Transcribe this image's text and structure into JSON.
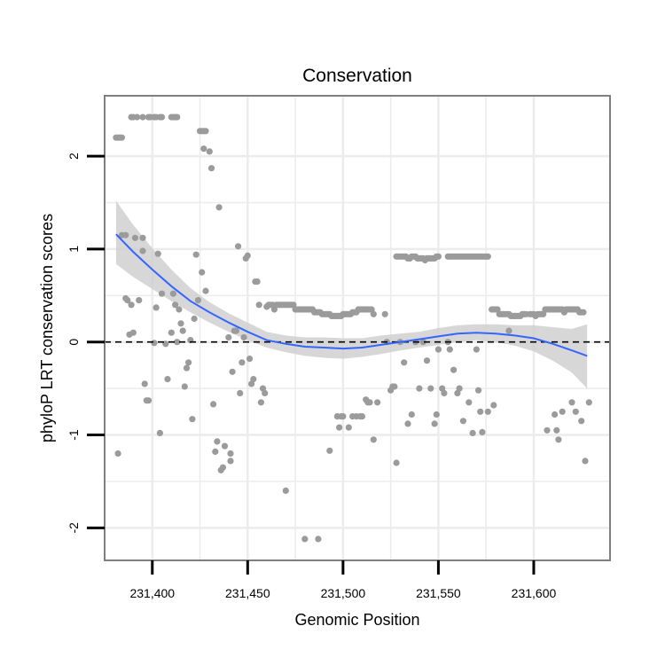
{
  "chart_data": {
    "type": "scatter",
    "title": "Conservation",
    "xlabel": "Genomic Position",
    "ylabel": "phyloP LRT conservation scores",
    "xlim": [
      231375,
      231640
    ],
    "ylim": [
      -2.35,
      2.65
    ],
    "x_ticks": [
      231400,
      231450,
      231500,
      231550,
      231600
    ],
    "x_tick_labels": [
      "231,400",
      "231,450",
      "231,500",
      "231,550",
      "231,600"
    ],
    "y_ticks": [
      -2,
      -1,
      0,
      1,
      2
    ],
    "y_tick_labels": [
      "-2",
      "-1",
      "0",
      "1",
      "2"
    ],
    "reference_line": 0,
    "points": [
      [
        231381,
        2.2
      ],
      [
        231382,
        2.2
      ],
      [
        231383,
        2.2
      ],
      [
        231384,
        2.2
      ],
      [
        231382,
        -1.2
      ],
      [
        231384,
        1.15
      ],
      [
        231386,
        1.15
      ],
      [
        231386,
        0.47
      ],
      [
        231387,
        0.45
      ],
      [
        231388,
        0.08
      ],
      [
        231389,
        0.4
      ],
      [
        231390,
        0.1
      ],
      [
        231391,
        1.12
      ],
      [
        231393,
        0.45
      ],
      [
        231395,
        1.12
      ],
      [
        231389,
        2.42
      ],
      [
        231390,
        2.42
      ],
      [
        231392,
        2.42
      ],
      [
        231395,
        2.42
      ],
      [
        231398,
        2.42
      ],
      [
        231399,
        2.42
      ],
      [
        231401,
        2.42
      ],
      [
        231402,
        2.42
      ],
      [
        231404,
        2.42
      ],
      [
        231405,
        2.42
      ],
      [
        231410,
        2.42
      ],
      [
        231411,
        2.42
      ],
      [
        231412,
        2.42
      ],
      [
        231413,
        2.42
      ],
      [
        231395,
        0.98
      ],
      [
        231396,
        -0.45
      ],
      [
        231397,
        -0.63
      ],
      [
        231398,
        -0.63
      ],
      [
        231401,
        -0.01
      ],
      [
        231402,
        0.37
      ],
      [
        231403,
        0.95
      ],
      [
        231404,
        -0.98
      ],
      [
        231405,
        0.52
      ],
      [
        231407,
        -0.02
      ],
      [
        231408,
        -0.4
      ],
      [
        231410,
        0.1
      ],
      [
        231411,
        0.52
      ],
      [
        231412,
        0.4
      ],
      [
        231413,
        0.0
      ],
      [
        231414,
        0.35
      ],
      [
        231415,
        0.2
      ],
      [
        231416,
        0.12
      ],
      [
        231417,
        -0.48
      ],
      [
        231418,
        -0.28
      ],
      [
        231419,
        -0.22
      ],
      [
        231420,
        0.02
      ],
      [
        231421,
        -0.83
      ],
      [
        231422,
        0.25
      ],
      [
        231423,
        0.94
      ],
      [
        231424,
        0.45
      ],
      [
        231425,
        2.27
      ],
      [
        231426,
        2.27
      ],
      [
        231427,
        2.27
      ],
      [
        231428,
        2.27
      ],
      [
        231426,
        0.75
      ],
      [
        231427,
        2.08
      ],
      [
        231428,
        0.55
      ],
      [
        231430,
        2.05
      ],
      [
        231431,
        1.87
      ],
      [
        231432,
        -0.67
      ],
      [
        231433,
        -1.18
      ],
      [
        231434,
        -1.07
      ],
      [
        231435,
        1.45
      ],
      [
        231436,
        -1.38
      ],
      [
        231437,
        -1.35
      ],
      [
        231438,
        -1.12
      ],
      [
        231440,
        0.05
      ],
      [
        231441,
        -1.28
      ],
      [
        231441,
        -1.2
      ],
      [
        231442,
        -0.32
      ],
      [
        231443,
        0.12
      ],
      [
        231444,
        0.12
      ],
      [
        231445,
        1.03
      ],
      [
        231446,
        -0.55
      ],
      [
        231447,
        -0.22
      ],
      [
        231448,
        0.05
      ],
      [
        231449,
        0.9
      ],
      [
        231450,
        0.93
      ],
      [
        231451,
        -0.18
      ],
      [
        231452,
        -0.45
      ],
      [
        231453,
        -0.4
      ],
      [
        231454,
        0.65
      ],
      [
        231455,
        0.65
      ],
      [
        231456,
        0.4
      ],
      [
        231457,
        -0.65
      ],
      [
        231458,
        -0.5
      ],
      [
        231459,
        -0.55
      ],
      [
        231460,
        0.38
      ],
      [
        231461,
        0.4
      ],
      [
        231462,
        0.4
      ],
      [
        231463,
        0.4
      ],
      [
        231464,
        0.35
      ],
      [
        231465,
        0.4
      ],
      [
        231466,
        0.4
      ],
      [
        231467,
        0.4
      ],
      [
        231468,
        0.4
      ],
      [
        231469,
        0.4
      ],
      [
        231470,
        0.4
      ],
      [
        231471,
        0.4
      ],
      [
        231472,
        0.4
      ],
      [
        231473,
        0.4
      ],
      [
        231474,
        0.4
      ],
      [
        231475,
        0.35
      ],
      [
        231476,
        0.35
      ],
      [
        231477,
        0.35
      ],
      [
        231478,
        0.35
      ],
      [
        231479,
        0.35
      ],
      [
        231480,
        0.35
      ],
      [
        231481,
        0.35
      ],
      [
        231482,
        0.35
      ],
      [
        231483,
        0.35
      ],
      [
        231484,
        0.35
      ],
      [
        231485,
        0.32
      ],
      [
        231486,
        0.32
      ],
      [
        231487,
        0.32
      ],
      [
        231488,
        0.32
      ],
      [
        231489,
        0.3
      ],
      [
        231490,
        0.3
      ],
      [
        231491,
        0.3
      ],
      [
        231492,
        0.3
      ],
      [
        231493,
        0.3
      ],
      [
        231494,
        0.28
      ],
      [
        231495,
        0.28
      ],
      [
        231496,
        0.28
      ],
      [
        231497,
        0.28
      ],
      [
        231498,
        0.28
      ],
      [
        231499,
        0.28
      ],
      [
        231500,
        0.3
      ],
      [
        231501,
        0.3
      ],
      [
        231502,
        0.3
      ],
      [
        231503,
        0.3
      ],
      [
        231504,
        0.3
      ],
      [
        231505,
        0.32
      ],
      [
        231506,
        0.32
      ],
      [
        231507,
        0.32
      ],
      [
        231508,
        0.35
      ],
      [
        231509,
        0.35
      ],
      [
        231510,
        0.35
      ],
      [
        231511,
        0.35
      ],
      [
        231512,
        0.35
      ],
      [
        231513,
        0.35
      ],
      [
        231514,
        0.35
      ],
      [
        231515,
        0.35
      ],
      [
        231516,
        0.3
      ],
      [
        231470,
        -1.6
      ],
      [
        231480,
        -2.12
      ],
      [
        231487,
        -2.12
      ],
      [
        231493,
        -1.17
      ],
      [
        231497,
        -0.8
      ],
      [
        231498,
        -0.92
      ],
      [
        231499,
        -0.8
      ],
      [
        231500,
        -0.8
      ],
      [
        231503,
        -0.92
      ],
      [
        231505,
        -0.8
      ],
      [
        231507,
        -0.8
      ],
      [
        231509,
        -0.8
      ],
      [
        231510,
        -0.8
      ],
      [
        231512,
        -0.62
      ],
      [
        231513,
        -0.65
      ],
      [
        231514,
        -0.65
      ],
      [
        231516,
        -1.05
      ],
      [
        231518,
        -0.65
      ],
      [
        231522,
        0.3
      ],
      [
        231523,
        0.0
      ],
      [
        231525,
        -0.52
      ],
      [
        231526,
        -0.48
      ],
      [
        231527,
        -0.48
      ],
      [
        231528,
        0.92
      ],
      [
        231529,
        0.92
      ],
      [
        231530,
        0.92
      ],
      [
        231531,
        0.92
      ],
      [
        231532,
        0.92
      ],
      [
        231533,
        0.92
      ],
      [
        231534,
        0.9
      ],
      [
        231535,
        0.9
      ],
      [
        231536,
        0.92
      ],
      [
        231537,
        0.92
      ],
      [
        231538,
        0.92
      ],
      [
        231539,
        0.9
      ],
      [
        231540,
        0.9
      ],
      [
        231541,
        0.9
      ],
      [
        231542,
        0.9
      ],
      [
        231543,
        0.88
      ],
      [
        231544,
        0.9
      ],
      [
        231545,
        0.9
      ],
      [
        231546,
        0.9
      ],
      [
        231547,
        0.9
      ],
      [
        231548,
        0.9
      ],
      [
        231549,
        0.92
      ],
      [
        231550,
        0.92
      ],
      [
        231528,
        -1.3
      ],
      [
        231530,
        0.0
      ],
      [
        231532,
        -0.22
      ],
      [
        231534,
        -0.88
      ],
      [
        231536,
        -0.78
      ],
      [
        231538,
        0.0
      ],
      [
        231540,
        -0.5
      ],
      [
        231542,
        0.0
      ],
      [
        231544,
        -0.2
      ],
      [
        231546,
        -0.5
      ],
      [
        231548,
        -0.88
      ],
      [
        231549,
        -0.78
      ],
      [
        231550,
        -0.08
      ],
      [
        231552,
        -0.5
      ],
      [
        231553,
        -0.55
      ],
      [
        231555,
        0.0
      ],
      [
        231556,
        -0.08
      ],
      [
        231558,
        -0.3
      ],
      [
        231560,
        -0.55
      ],
      [
        231561,
        -0.5
      ],
      [
        231563,
        -0.85
      ],
      [
        231555,
        0.92
      ],
      [
        231556,
        0.92
      ],
      [
        231557,
        0.92
      ],
      [
        231558,
        0.92
      ],
      [
        231559,
        0.92
      ],
      [
        231560,
        0.92
      ],
      [
        231561,
        0.92
      ],
      [
        231562,
        0.92
      ],
      [
        231563,
        0.92
      ],
      [
        231564,
        0.92
      ],
      [
        231565,
        0.92
      ],
      [
        231566,
        0.92
      ],
      [
        231567,
        0.92
      ],
      [
        231568,
        0.92
      ],
      [
        231569,
        0.92
      ],
      [
        231570,
        0.92
      ],
      [
        231571,
        0.92
      ],
      [
        231572,
        0.92
      ],
      [
        231573,
        0.92
      ],
      [
        231574,
        0.92
      ],
      [
        231575,
        0.92
      ],
      [
        231576,
        0.92
      ],
      [
        231566,
        -0.65
      ],
      [
        231568,
        -0.98
      ],
      [
        231570,
        -0.08
      ],
      [
        231571,
        -0.52
      ],
      [
        231572,
        -0.75
      ],
      [
        231573,
        -0.97
      ],
      [
        231576,
        -0.75
      ],
      [
        231579,
        -0.68
      ],
      [
        231578,
        0.35
      ],
      [
        231579,
        0.35
      ],
      [
        231580,
        0.35
      ],
      [
        231581,
        0.35
      ],
      [
        231582,
        0.3
      ],
      [
        231583,
        0.3
      ],
      [
        231584,
        0.3
      ],
      [
        231585,
        0.3
      ],
      [
        231586,
        0.3
      ],
      [
        231587,
        0.3
      ],
      [
        231588,
        0.28
      ],
      [
        231589,
        0.28
      ],
      [
        231590,
        0.28
      ],
      [
        231591,
        0.28
      ],
      [
        231592,
        0.28
      ],
      [
        231593,
        0.28
      ],
      [
        231594,
        0.3
      ],
      [
        231595,
        0.3
      ],
      [
        231596,
        0.3
      ],
      [
        231598,
        0.3
      ],
      [
        231599,
        0.3
      ],
      [
        231600,
        0.3
      ],
      [
        231601,
        0.28
      ],
      [
        231602,
        0.3
      ],
      [
        231603,
        0.3
      ],
      [
        231604,
        0.3
      ],
      [
        231605,
        0.3
      ],
      [
        231606,
        0.35
      ],
      [
        231607,
        0.35
      ],
      [
        231608,
        0.35
      ],
      [
        231609,
        0.35
      ],
      [
        231610,
        0.35
      ],
      [
        231611,
        0.35
      ],
      [
        231612,
        0.35
      ],
      [
        231613,
        0.35
      ],
      [
        231614,
        0.35
      ],
      [
        231615,
        0.35
      ],
      [
        231616,
        0.32
      ],
      [
        231617,
        0.35
      ],
      [
        231618,
        0.35
      ],
      [
        231619,
        0.35
      ],
      [
        231620,
        0.35
      ],
      [
        231621,
        0.35
      ],
      [
        231622,
        0.35
      ],
      [
        231623,
        0.35
      ],
      [
        231624,
        0.32
      ],
      [
        231625,
        0.32
      ],
      [
        231626,
        0.32
      ],
      [
        231587,
        0.12
      ],
      [
        231607,
        -0.95
      ],
      [
        231611,
        -0.78
      ],
      [
        231612,
        -0.95
      ],
      [
        231613,
        -1.05
      ],
      [
        231615,
        -0.75
      ],
      [
        231620,
        -0.65
      ],
      [
        231622,
        -0.75
      ],
      [
        231625,
        -0.85
      ],
      [
        231627,
        -1.28
      ],
      [
        231629,
        -0.65
      ]
    ],
    "smooth": {
      "x": [
        231381,
        231390,
        231400,
        231410,
        231420,
        231430,
        231440,
        231450,
        231460,
        231470,
        231480,
        231490,
        231500,
        231510,
        231520,
        231530,
        231540,
        231550,
        231560,
        231570,
        231580,
        231590,
        231600,
        231610,
        231620,
        231628
      ],
      "y": [
        1.16,
        0.97,
        0.78,
        0.6,
        0.44,
        0.32,
        0.21,
        0.11,
        0.02,
        -0.02,
        -0.05,
        -0.06,
        -0.07,
        -0.06,
        -0.03,
        0.0,
        0.03,
        0.06,
        0.09,
        0.1,
        0.09,
        0.07,
        0.04,
        -0.02,
        -0.09,
        -0.15
      ],
      "lower": [
        0.84,
        0.7,
        0.57,
        0.44,
        0.32,
        0.21,
        0.11,
        0.02,
        -0.06,
        -0.11,
        -0.15,
        -0.17,
        -0.18,
        -0.16,
        -0.13,
        -0.09,
        -0.06,
        -0.03,
        0.0,
        0.02,
        0.0,
        -0.04,
        -0.1,
        -0.2,
        -0.33,
        -0.5
      ],
      "upper": [
        1.52,
        1.26,
        1.01,
        0.78,
        0.58,
        0.43,
        0.31,
        0.21,
        0.11,
        0.07,
        0.05,
        0.05,
        0.04,
        0.04,
        0.07,
        0.09,
        0.11,
        0.15,
        0.18,
        0.19,
        0.19,
        0.18,
        0.18,
        0.16,
        0.14,
        0.19
      ]
    },
    "colors": {
      "points": "#9b9b9b",
      "line": "#3366ff",
      "band": "#d0d0d0",
      "grid": "#ececec",
      "border": "#7f7f7f"
    }
  }
}
